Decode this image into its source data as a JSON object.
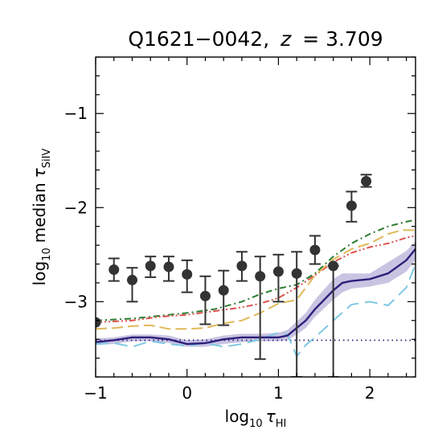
{
  "chart_data": {
    "type": "line",
    "title": {
      "prefix": "Q1621−0042,",
      "var": "z",
      "equals": "= 3.709"
    },
    "xlabel": {
      "base": "log",
      "base_sub": "10",
      "sym": "τ",
      "sub": "HI"
    },
    "ylabel": {
      "base": "log",
      "base_sub": "10",
      "word": "median",
      "sym": "τ",
      "sub": "SiIV"
    },
    "xlim": [
      -1,
      2.5
    ],
    "ylim": [
      -3.8,
      -0.4
    ],
    "xticks": [
      -1,
      0,
      1,
      2
    ],
    "xtick_labels": [
      "−1",
      "0",
      "1",
      "2"
    ],
    "yticks": [
      -3,
      -2,
      -1
    ],
    "ytick_labels": [
      "−3",
      "−2",
      "−1"
    ],
    "grid": false,
    "colors": {
      "points": "#333333",
      "model_main": "#2e1f7a",
      "model_band": "#b7b0d8",
      "green": "#2e7d32",
      "red": "#d9534f",
      "gold": "#e0b95a",
      "cyan": "#7ec8e3",
      "dotted": "#2e1f7a"
    },
    "observed": {
      "points": [
        {
          "x": -1.0,
          "y": -3.22,
          "lo": -3.22,
          "hi": -3.22
        },
        {
          "x": -0.8,
          "y": -2.66,
          "lo": -2.78,
          "hi": -2.54
        },
        {
          "x": -0.6,
          "y": -2.77,
          "lo": -3.0,
          "hi": -2.64
        },
        {
          "x": -0.4,
          "y": -2.62,
          "lo": -2.74,
          "hi": -2.52
        },
        {
          "x": -0.2,
          "y": -2.63,
          "lo": -2.78,
          "hi": -2.52
        },
        {
          "x": 0.0,
          "y": -2.71,
          "lo": -2.9,
          "hi": -2.56
        },
        {
          "x": 0.2,
          "y": -2.94,
          "lo": -3.24,
          "hi": -2.73
        },
        {
          "x": 0.4,
          "y": -2.88,
          "lo": -3.25,
          "hi": -2.67
        },
        {
          "x": 0.6,
          "y": -2.62,
          "lo": -2.78,
          "hi": -2.47
        },
        {
          "x": 0.8,
          "y": -2.73,
          "lo": -3.61,
          "hi": -2.52
        },
        {
          "x": 1.0,
          "y": -2.68,
          "lo": -3.0,
          "hi": -2.5
        },
        {
          "x": 1.2,
          "y": -2.7,
          "lo": -3.8,
          "hi": -2.47
        },
        {
          "x": 1.4,
          "y": -2.45,
          "lo": -2.6,
          "hi": -2.3
        },
        {
          "x": 1.6,
          "y": -2.62,
          "lo": -3.8,
          "hi": -2.62
        },
        {
          "x": 1.8,
          "y": -1.98,
          "lo": -2.15,
          "hi": -1.83
        },
        {
          "x": 1.96,
          "y": -1.72,
          "lo": -1.78,
          "hi": -1.65
        }
      ]
    },
    "dotted_level": -3.41,
    "series": [
      {
        "style": "solid",
        "x": [
          -1.0,
          -0.8,
          -0.6,
          -0.4,
          -0.2,
          0.0,
          0.2,
          0.4,
          0.6,
          0.8,
          1.0,
          1.1,
          1.2,
          1.3,
          1.4,
          1.6,
          1.7,
          1.8,
          2.0,
          2.2,
          2.4,
          2.5
        ],
        "y": [
          -3.43,
          -3.41,
          -3.38,
          -3.38,
          -3.4,
          -3.45,
          -3.44,
          -3.4,
          -3.38,
          -3.38,
          -3.38,
          -3.36,
          -3.28,
          -3.2,
          -3.08,
          -2.88,
          -2.8,
          -2.78,
          -2.76,
          -2.7,
          -2.56,
          -2.44
        ]
      },
      {
        "style": "band",
        "x": [
          -1.0,
          -0.8,
          -0.6,
          -0.4,
          -0.2,
          0.0,
          0.2,
          0.4,
          0.6,
          0.8,
          1.0,
          1.1,
          1.2,
          1.3,
          1.4,
          1.6,
          1.7,
          1.8,
          2.0,
          2.2,
          2.4,
          2.5
        ],
        "upper": [
          -3.39,
          -3.38,
          -3.35,
          -3.35,
          -3.36,
          -3.41,
          -3.4,
          -3.36,
          -3.34,
          -3.34,
          -3.33,
          -3.3,
          -3.21,
          -3.12,
          -2.98,
          -2.76,
          -2.7,
          -2.7,
          -2.7,
          -2.58,
          -2.46,
          -2.36
        ],
        "lower": [
          -3.46,
          -3.45,
          -3.42,
          -3.42,
          -3.44,
          -3.48,
          -3.48,
          -3.45,
          -3.43,
          -3.42,
          -3.42,
          -3.41,
          -3.35,
          -3.28,
          -3.16,
          -2.98,
          -2.9,
          -2.86,
          -2.84,
          -2.8,
          -2.68,
          -2.56
        ]
      },
      {
        "style": "dashdot",
        "color_key": "green",
        "x": [
          -1.0,
          -0.6,
          -0.3,
          0.0,
          0.3,
          0.6,
          0.8,
          1.0,
          1.2,
          1.4,
          1.6,
          1.8,
          2.0,
          2.2,
          2.4,
          2.5
        ],
        "y": [
          -3.2,
          -3.18,
          -3.15,
          -3.12,
          -3.08,
          -3.0,
          -2.92,
          -2.86,
          -2.82,
          -2.7,
          -2.52,
          -2.38,
          -2.28,
          -2.2,
          -2.15,
          -2.13
        ]
      },
      {
        "style": "dashdotdot",
        "color_key": "red",
        "x": [
          -1.0,
          -0.6,
          -0.3,
          0.0,
          0.3,
          0.6,
          0.8,
          1.0,
          1.2,
          1.4,
          1.6,
          1.8,
          2.0,
          2.2,
          2.4,
          2.5
        ],
        "y": [
          -3.22,
          -3.2,
          -3.16,
          -3.14,
          -3.1,
          -3.06,
          -3.02,
          -2.96,
          -2.85,
          -2.72,
          -2.58,
          -2.48,
          -2.42,
          -2.38,
          -2.32,
          -2.3
        ]
      },
      {
        "style": "dashed",
        "color_key": "gold",
        "x": [
          -1.0,
          -0.8,
          -0.6,
          -0.4,
          -0.2,
          0.0,
          0.2,
          0.4,
          0.6,
          0.8,
          1.0,
          1.2,
          1.4,
          1.6,
          1.8,
          2.0,
          2.2,
          2.35,
          2.5
        ],
        "y": [
          -3.29,
          -3.28,
          -3.26,
          -3.25,
          -3.29,
          -3.29,
          -3.28,
          -3.23,
          -3.2,
          -3.12,
          -3.02,
          -2.98,
          -2.72,
          -2.55,
          -2.44,
          -2.38,
          -2.28,
          -2.24,
          -2.24
        ]
      },
      {
        "style": "longdash",
        "color_key": "cyan",
        "x": [
          -1.0,
          -0.8,
          -0.6,
          -0.4,
          -0.2,
          0.0,
          0.2,
          0.4,
          0.6,
          0.8,
          1.0,
          1.1,
          1.2,
          1.3,
          1.4,
          1.6,
          1.8,
          2.0,
          2.2,
          2.4,
          2.5
        ],
        "y": [
          -3.45,
          -3.44,
          -3.48,
          -3.42,
          -3.45,
          -3.47,
          -3.44,
          -3.48,
          -3.45,
          -3.4,
          -3.33,
          -3.35,
          -3.58,
          -3.46,
          -3.38,
          -3.2,
          -3.03,
          -3.0,
          -3.04,
          -2.85,
          -2.6
        ]
      }
    ]
  }
}
